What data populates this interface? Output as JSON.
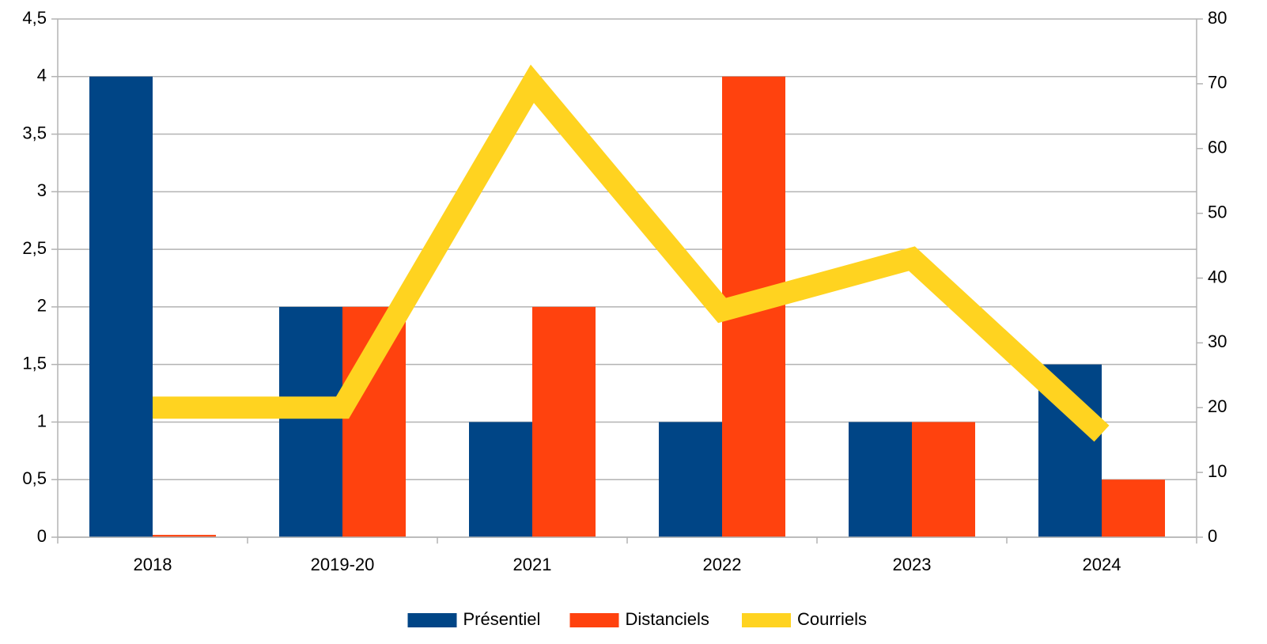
{
  "chart_data": {
    "type": "bar_line",
    "categories": [
      "2018",
      "2019-20",
      "2021",
      "2022",
      "2023",
      "2024"
    ],
    "series": [
      {
        "name": "Présentiel",
        "color": "#004586",
        "values": [
          4,
          2,
          1,
          1,
          1,
          1.5
        ]
      },
      {
        "name": "Distanciels",
        "color": "#ff420e",
        "values": [
          0.02,
          2,
          2,
          4,
          1,
          0.5
        ]
      },
      {
        "name": "Courriels",
        "color": "#ffd320",
        "axis": "y2",
        "type": "line",
        "values": [
          20,
          20,
          70,
          35,
          43,
          16
        ]
      }
    ],
    "ylim": [
      0,
      4.5
    ],
    "yticks": [
      0,
      {
        "value": 0.5,
        "label": "0,5"
      },
      1,
      {
        "value": 1.5,
        "label": "1,5"
      },
      2,
      {
        "value": 2.5,
        "label": "2,5"
      },
      3,
      {
        "value": 3.5,
        "label": "3,5"
      },
      4,
      {
        "value": 4.5,
        "label": "4,5"
      }
    ],
    "y2lim": [
      0,
      80
    ],
    "y2ticks": [
      0,
      10,
      20,
      30,
      40,
      50,
      60,
      70,
      80
    ],
    "grid": true,
    "legend": "bottom"
  }
}
